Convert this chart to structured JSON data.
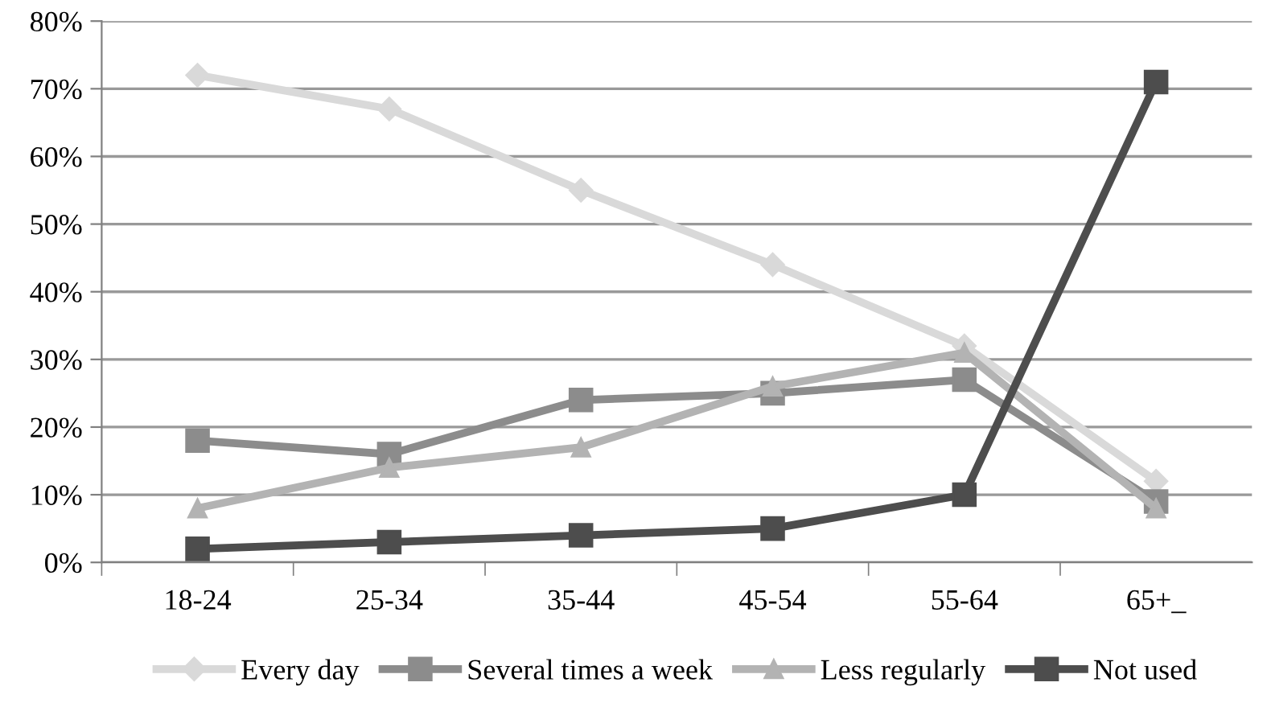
{
  "chart_data": {
    "type": "line",
    "categories": [
      "18-24",
      "25-34",
      "35-44",
      "45-54",
      "55-64",
      "65+_"
    ],
    "series": [
      {
        "name": "Every day",
        "color": "#d9d9d9",
        "marker": "diamond",
        "values": [
          72,
          67,
          55,
          44,
          32,
          12
        ]
      },
      {
        "name": "Several times a week",
        "color": "#8c8c8c",
        "marker": "square",
        "values": [
          18,
          16,
          24,
          25,
          27,
          9
        ]
      },
      {
        "name": "Less regularly",
        "color": "#b3b3b3",
        "marker": "triangle",
        "values": [
          8,
          14,
          17,
          26,
          31,
          8
        ]
      },
      {
        "name": "Not used",
        "color": "#4d4d4d",
        "marker": "square",
        "values": [
          2,
          3,
          4,
          5,
          10,
          71
        ]
      }
    ],
    "ylim": [
      0,
      80
    ],
    "yticks": [
      {
        "value": 0,
        "label": "0%"
      },
      {
        "value": 10,
        "label": "10%"
      },
      {
        "value": 20,
        "label": "20%"
      },
      {
        "value": 30,
        "label": "30%"
      },
      {
        "value": 40,
        "label": "40%"
      },
      {
        "value": 50,
        "label": "50%"
      },
      {
        "value": 60,
        "label": "60%"
      },
      {
        "value": 70,
        "label": "70%"
      },
      {
        "value": 80,
        "label": "80%"
      }
    ],
    "grid": "y",
    "legend": "bottom",
    "line_style": "solid"
  }
}
